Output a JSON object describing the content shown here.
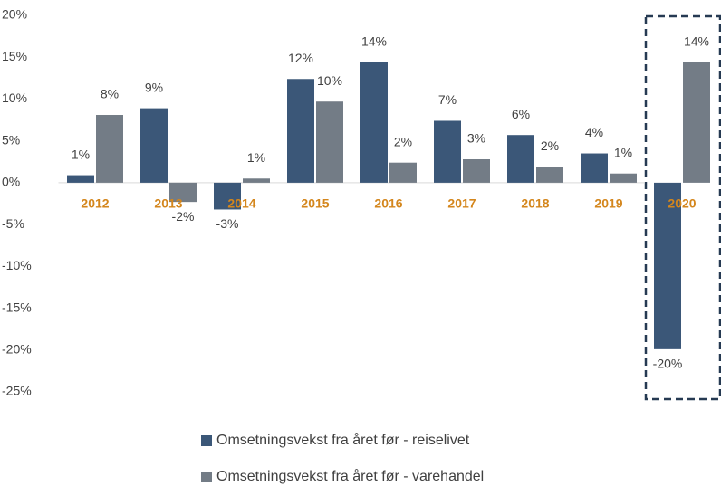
{
  "chart_data": {
    "type": "bar",
    "categories": [
      "2012",
      "2013",
      "2014",
      "2015",
      "2016",
      "2017",
      "2018",
      "2019",
      "2020"
    ],
    "series": [
      {
        "name": "Omsetningsvekst fra året før - reiselivet",
        "color": "#3b5778",
        "values": [
          0.9,
          8.9,
          -3.2,
          12.4,
          14.4,
          7.4,
          5.7,
          3.5,
          -19.9
        ],
        "value_labels": [
          "1%",
          "9%",
          "-3%",
          "12%",
          "14%",
          "7%",
          "6%",
          "4%",
          "-20%"
        ]
      },
      {
        "name": "Omsetningsvekst fra året før - varehandel",
        "color": "#737c86",
        "values": [
          8.1,
          -2.3,
          0.5,
          9.7,
          2.4,
          2.8,
          1.9,
          1.1,
          14.4
        ],
        "value_labels": [
          "8%",
          "-2%",
          "1%",
          "10%",
          "2%",
          "3%",
          "2%",
          "1%",
          "14%"
        ]
      }
    ],
    "ylim": [
      -25,
      20
    ],
    "yticks": [
      {
        "value": -25,
        "label": "-25%"
      },
      {
        "value": -20,
        "label": "-20%"
      },
      {
        "value": -15,
        "label": "-15%"
      },
      {
        "value": -10,
        "label": "-10%"
      },
      {
        "value": -5,
        "label": "-5%"
      },
      {
        "value": 0,
        "label": "0%"
      },
      {
        "value": 5,
        "label": "5%"
      },
      {
        "value": 10,
        "label": "10%"
      },
      {
        "value": 15,
        "label": "15%"
      },
      {
        "value": 20,
        "label": "20%"
      }
    ],
    "grid": false
  }
}
